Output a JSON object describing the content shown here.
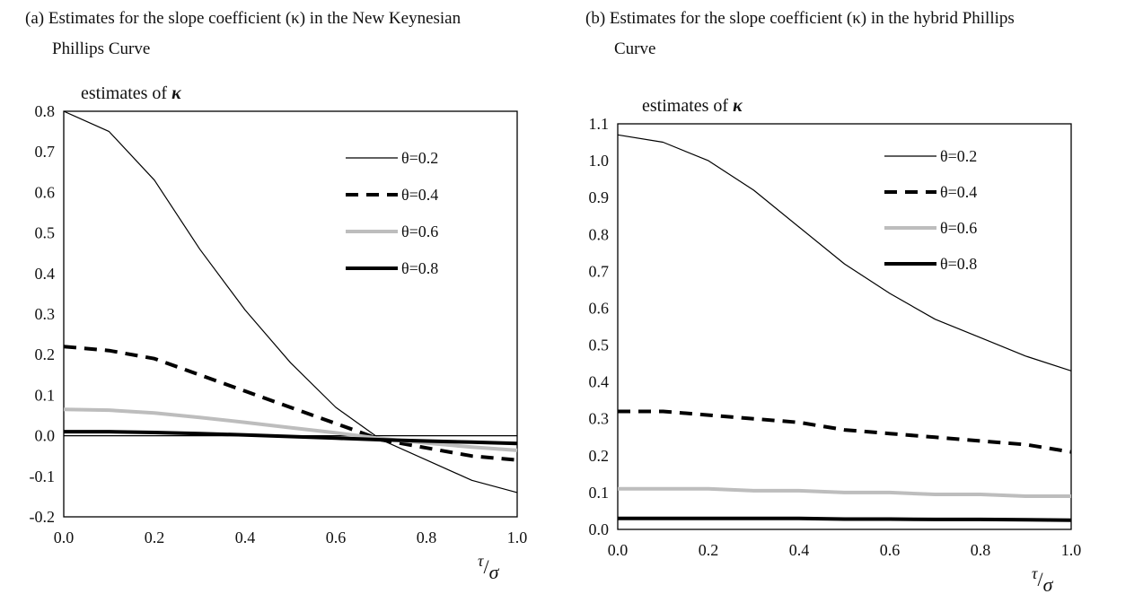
{
  "captions": {
    "a": {
      "line1": "(a) Estimates for the slope coefficient (κ) in the New Keynesian",
      "line2": "Phillips Curve"
    },
    "b": {
      "line1": "(b) Estimates for the slope coefficient (κ) in the hybrid Phillips",
      "line2": "Curve"
    }
  },
  "chart_data": [
    {
      "type": "line",
      "ylabel": "estimates of κ",
      "xlabel": "τ/σ",
      "xlim": [
        0.0,
        1.0
      ],
      "ylim": [
        -0.2,
        0.8
      ],
      "xticks": [
        "0.0",
        "0.2",
        "0.4",
        "0.6",
        "0.8",
        "1.0"
      ],
      "yticks": [
        "-0.2",
        "-0.1",
        "0.0",
        "0.1",
        "0.2",
        "0.3",
        "0.4",
        "0.5",
        "0.6",
        "0.7",
        "0.8"
      ],
      "zero_line": true,
      "grid": false,
      "legend_position": "top-right",
      "x": [
        0.0,
        0.1,
        0.2,
        0.3,
        0.4,
        0.5,
        0.6,
        0.7,
        0.8,
        0.9,
        1.0
      ],
      "series": [
        {
          "name": "θ=0.2",
          "style": "thin-solid",
          "color": "#000000",
          "values": [
            0.8,
            0.75,
            0.63,
            0.46,
            0.31,
            0.18,
            0.07,
            -0.01,
            -0.06,
            -0.11,
            -0.14
          ]
        },
        {
          "name": "θ=0.4",
          "style": "thick-dashed",
          "color": "#000000",
          "values": [
            0.22,
            0.21,
            0.19,
            0.15,
            0.11,
            0.07,
            0.03,
            -0.01,
            -0.03,
            -0.05,
            -0.06
          ]
        },
        {
          "name": "θ=0.6",
          "style": "thick-solid",
          "color": "#bdbdbd",
          "values": [
            0.065,
            0.063,
            0.056,
            0.045,
            0.033,
            0.02,
            0.007,
            -0.007,
            -0.018,
            -0.028,
            -0.036
          ]
        },
        {
          "name": "θ=0.8",
          "style": "thick-solid",
          "color": "#000000",
          "values": [
            0.01,
            0.01,
            0.008,
            0.005,
            0.002,
            -0.002,
            -0.006,
            -0.01,
            -0.013,
            -0.016,
            -0.019
          ]
        }
      ]
    },
    {
      "type": "line",
      "ylabel": "estimates of κ",
      "xlabel": "τ/σ",
      "xlim": [
        0.0,
        1.0
      ],
      "ylim": [
        0.0,
        1.1
      ],
      "xticks": [
        "0.0",
        "0.2",
        "0.4",
        "0.6",
        "0.8",
        "1.0"
      ],
      "yticks": [
        "0.0",
        "0.1",
        "0.2",
        "0.3",
        "0.4",
        "0.5",
        "0.6",
        "0.7",
        "0.8",
        "0.9",
        "1.0",
        "1.1"
      ],
      "zero_line": false,
      "grid": false,
      "legend_position": "top-right",
      "x": [
        0.0,
        0.1,
        0.2,
        0.3,
        0.4,
        0.5,
        0.6,
        0.7,
        0.8,
        0.9,
        1.0
      ],
      "series": [
        {
          "name": "θ=0.2",
          "style": "thin-solid",
          "color": "#000000",
          "values": [
            1.07,
            1.05,
            1.0,
            0.92,
            0.82,
            0.72,
            0.64,
            0.57,
            0.52,
            0.47,
            0.43
          ]
        },
        {
          "name": "θ=0.4",
          "style": "thick-dashed",
          "color": "#000000",
          "values": [
            0.32,
            0.32,
            0.31,
            0.3,
            0.29,
            0.27,
            0.26,
            0.25,
            0.24,
            0.23,
            0.21
          ]
        },
        {
          "name": "θ=0.6",
          "style": "thick-solid",
          "color": "#bdbdbd",
          "values": [
            0.11,
            0.11,
            0.11,
            0.105,
            0.105,
            0.1,
            0.1,
            0.095,
            0.095,
            0.09,
            0.09
          ]
        },
        {
          "name": "θ=0.8",
          "style": "thick-solid",
          "color": "#000000",
          "values": [
            0.03,
            0.03,
            0.03,
            0.03,
            0.03,
            0.028,
            0.028,
            0.027,
            0.027,
            0.026,
            0.025
          ]
        }
      ]
    }
  ]
}
